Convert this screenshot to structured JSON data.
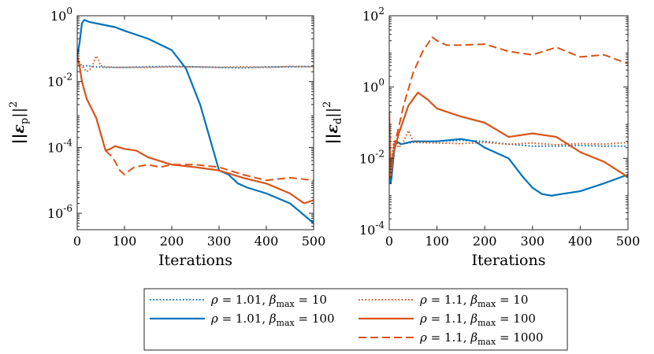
{
  "chart_data": [
    {
      "type": "line",
      "yscale": "log",
      "xlabel": "Iterations",
      "ylabel": "||εp||²",
      "ylabel_base": "||ε",
      "ylabel_sub": "p",
      "ylabel_end": "||",
      "ylabel_sup": "2",
      "xlim": [
        0,
        500
      ],
      "ylim_exp": [
        -6.5,
        0
      ],
      "xticks": [
        0,
        100,
        200,
        300,
        400,
        500
      ],
      "xtick_labels": [
        "0",
        "100",
        "200",
        "300",
        "400",
        "500"
      ],
      "yticks_exp": [
        -6,
        -4,
        -2,
        0
      ],
      "ytick_labels": [
        {
          "base": "10",
          "exp": "-6"
        },
        {
          "base": "10",
          "exp": "-4"
        },
        {
          "base": "10",
          "exp": "-2"
        },
        {
          "base": "10",
          "exp": "0"
        }
      ],
      "series": [
        {
          "id": "s1",
          "x": [
            0,
            8,
            20,
            40,
            60,
            100,
            150,
            200,
            250,
            300,
            350,
            400,
            450,
            500
          ],
          "y": [
            0.05,
            0.03,
            0.03,
            0.028,
            0.027,
            0.027,
            0.028,
            0.029,
            0.028,
            0.027,
            0.026,
            0.028,
            0.028,
            0.029
          ]
        },
        {
          "id": "s2",
          "x": [
            0,
            5,
            10,
            15,
            25,
            50,
            80,
            100,
            150,
            200,
            230,
            260,
            280,
            300,
            320,
            340,
            360,
            400,
            450,
            500
          ],
          "y": [
            0.06,
            0.15,
            0.6,
            0.75,
            0.65,
            0.55,
            0.45,
            0.35,
            0.2,
            0.09,
            0.025,
            0.002,
            0.0002,
            2e-05,
            1.5e-05,
            8e-06,
            6e-06,
            4e-06,
            2e-06,
            5e-07
          ]
        },
        {
          "id": "s3",
          "x": [
            0,
            10,
            20,
            30,
            40,
            45,
            50,
            60,
            80,
            100,
            150,
            200,
            250,
            300,
            350,
            400,
            450,
            500
          ],
          "y": [
            0.05,
            0.03,
            0.02,
            0.025,
            0.06,
            0.045,
            0.03,
            0.028,
            0.027,
            0.027,
            0.027,
            0.028,
            0.028,
            0.027,
            0.028,
            0.027,
            0.029,
            0.028
          ]
        },
        {
          "id": "s4",
          "x": [
            0,
            5,
            10,
            20,
            40,
            60,
            70,
            80,
            100,
            125,
            150,
            200,
            250,
            300,
            350,
            400,
            450,
            480,
            500
          ],
          "y": [
            0.06,
            0.03,
            0.01,
            0.003,
            0.0008,
            8e-05,
            9e-05,
            0.00011,
            9e-05,
            8e-05,
            5e-05,
            3e-05,
            2.5e-05,
            2e-05,
            1.2e-05,
            8e-06,
            4e-06,
            2e-06,
            2.5e-06
          ]
        },
        {
          "id": "s5",
          "x": [
            60,
            75,
            90,
            100,
            120,
            150,
            175,
            200,
            250,
            300,
            350,
            400,
            450,
            500
          ],
          "y": [
            8e-05,
            5e-05,
            2e-05,
            1.5e-05,
            2.5e-05,
            3e-05,
            2.5e-05,
            3e-05,
            3e-05,
            2.5e-05,
            1.5e-05,
            1e-05,
            1.2e-05,
            1e-05
          ]
        }
      ]
    },
    {
      "type": "line",
      "yscale": "log",
      "xlabel": "Iterations",
      "ylabel": "||εd||²",
      "ylabel_base": "||ε",
      "ylabel_sub": "d",
      "ylabel_end": "||",
      "ylabel_sup": "2",
      "xlim": [
        0,
        500
      ],
      "ylim_exp": [
        -4,
        2
      ],
      "xticks": [
        0,
        100,
        200,
        300,
        400,
        500
      ],
      "xtick_labels": [
        "0",
        "100",
        "200",
        "300",
        "400",
        "500"
      ],
      "yticks_exp": [
        -4,
        -2,
        0,
        2
      ],
      "ytick_labels": [
        {
          "base": "10",
          "exp": "-4"
        },
        {
          "base": "10",
          "exp": "-2"
        },
        {
          "base": "10",
          "exp": "0"
        },
        {
          "base": "10",
          "exp": "2"
        }
      ],
      "series": [
        {
          "id": "s1",
          "x": [
            0,
            3,
            6,
            10,
            20,
            50,
            100,
            150,
            200,
            250,
            300,
            350,
            400,
            450,
            500
          ],
          "y": [
            0.08,
            0.002,
            0.01,
            0.03,
            0.025,
            0.028,
            0.03,
            0.032,
            0.03,
            0.025,
            0.022,
            0.022,
            0.023,
            0.022,
            0.022
          ]
        },
        {
          "id": "s2",
          "x": [
            0,
            3,
            5,
            10,
            15,
            25,
            50,
            100,
            150,
            180,
            200,
            250,
            280,
            300,
            320,
            340,
            360,
            400,
            450,
            500
          ],
          "y": [
            0.02,
            0.002,
            0.003,
            0.015,
            0.03,
            0.025,
            0.03,
            0.03,
            0.035,
            0.03,
            0.02,
            0.01,
            0.003,
            0.0015,
            0.001,
            0.0009,
            0.001,
            0.0012,
            0.002,
            0.0035
          ]
        },
        {
          "id": "s3",
          "x": [
            0,
            3,
            6,
            10,
            20,
            30,
            40,
            50,
            60,
            100,
            150,
            200,
            250,
            300,
            350,
            400,
            450,
            500
          ],
          "y": [
            0.1,
            0.003,
            0.01,
            0.03,
            0.02,
            0.03,
            0.06,
            0.03,
            0.028,
            0.027,
            0.026,
            0.028,
            0.025,
            0.027,
            0.024,
            0.026,
            0.025,
            0.028
          ]
        },
        {
          "id": "s4",
          "x": [
            0,
            3,
            6,
            20,
            40,
            60,
            80,
            100,
            150,
            200,
            250,
            300,
            350,
            400,
            450,
            500
          ],
          "y": [
            0.2,
            0.003,
            0.01,
            0.05,
            0.3,
            0.7,
            0.45,
            0.25,
            0.15,
            0.1,
            0.04,
            0.05,
            0.04,
            0.015,
            0.008,
            0.003
          ]
        },
        {
          "id": "s5",
          "x": [
            0,
            3,
            10,
            30,
            50,
            70,
            90,
            100,
            120,
            150,
            200,
            250,
            300,
            350,
            400,
            450,
            500
          ],
          "y": [
            0.2,
            0.003,
            0.02,
            0.3,
            2.5,
            10,
            25,
            20,
            15,
            15,
            16,
            10,
            8,
            13,
            7,
            8,
            4.5
          ]
        }
      ]
    }
  ],
  "legend": [
    {
      "id": "s1",
      "rho": "1.01",
      "beta": "10",
      "color": "#0072BD",
      "style": "dotted",
      "label": "ρ = 1.01,  βmax = 10"
    },
    {
      "id": "s2",
      "rho": "1.01",
      "beta": "100",
      "color": "#0072BD",
      "style": "solid",
      "label": "ρ = 1.01,  βmax = 100"
    },
    {
      "id": "s3",
      "rho": "1.1",
      "beta": "10",
      "color": "#D95319",
      "style": "dotted",
      "label": "ρ = 1.1,  βmax = 10"
    },
    {
      "id": "s4",
      "rho": "1.1",
      "beta": "100",
      "color": "#D95319",
      "style": "solid",
      "label": "ρ = 1.1,  βmax = 100"
    },
    {
      "id": "s5",
      "rho": "1.1",
      "beta": "1000",
      "color": "#D95319",
      "style": "dashed",
      "label": "ρ = 1.1,  βmax = 1000"
    }
  ],
  "legend_text": {
    "rho_symbol": "ρ",
    "beta_symbol": "β",
    "beta_sub": "max",
    "eq": " = ",
    "sep": ",  "
  }
}
